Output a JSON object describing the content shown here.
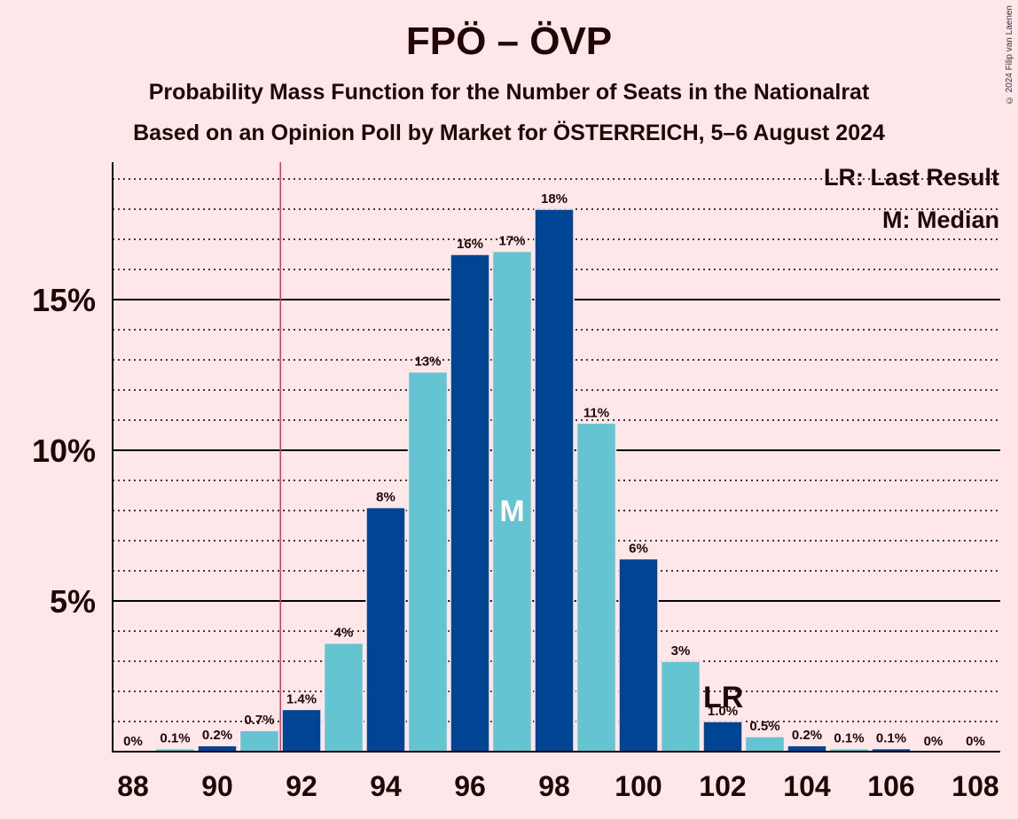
{
  "header": {
    "title": "FPÖ – ÖVP",
    "subtitle": "Probability Mass Function for the Number of Seats in the Nationalrat",
    "source": "Based on an Opinion Poll by Market for ÖSTERREICH, 5–6 August 2024",
    "copyright": "© 2024 Filip van Laenen"
  },
  "legend": {
    "last_result": "LR: Last Result",
    "median": "M: Median"
  },
  "colors": {
    "background": "#FFE6E8",
    "bar_dark": "#004494",
    "bar_light": "#64C4D2",
    "last_result_line": "#E8344A",
    "text": "#220606"
  },
  "chart_data": {
    "type": "bar",
    "title": "FPÖ – ÖVP",
    "x": [
      88,
      89,
      90,
      91,
      92,
      93,
      94,
      95,
      96,
      97,
      98,
      99,
      100,
      101,
      102,
      103,
      104,
      105,
      106,
      107,
      108
    ],
    "values": [
      0,
      0.1,
      0.2,
      0.7,
      1.4,
      3.6,
      8.1,
      12.6,
      16.5,
      16.6,
      18.0,
      10.9,
      6.4,
      3.0,
      1.0,
      0.5,
      0.2,
      0.1,
      0.1,
      0,
      0
    ],
    "labels": [
      "0%",
      "0.1%",
      "0.2%",
      "0.7%",
      "1.4%",
      "4%",
      "8%",
      "13%",
      "16%",
      "17%",
      "18%",
      "11%",
      "6%",
      "3%",
      "1.0%",
      "0.5%",
      "0.2%",
      "0.1%",
      "0.1%",
      "0%",
      "0%"
    ],
    "yticks": [
      5,
      10,
      15
    ],
    "ytick_labels": [
      "5%",
      "10%",
      "15%"
    ],
    "xticks": [
      88,
      90,
      92,
      94,
      96,
      98,
      100,
      102,
      104,
      106,
      108
    ],
    "ylim": [
      0,
      19.6
    ],
    "median": 97,
    "median_label": "M",
    "last_result": 102,
    "last_result_label": "LR",
    "last_result_line_position": 91.5,
    "grid": "dotted every 1%, solid every 5%",
    "legend_position": "top-right"
  }
}
